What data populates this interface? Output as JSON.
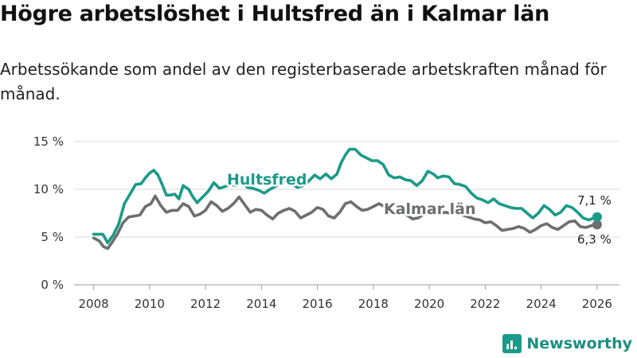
{
  "header": {
    "title": "Högre arbetslöshet i Hultsfred än i Kalmar län",
    "subtitle": "Arbetssökande som andel av den registerbaserade arbetskraften månad för månad."
  },
  "brand": {
    "name": "Newsworthy",
    "icon": "newsworthy-logo-icon"
  },
  "chart_data": {
    "type": "line",
    "title": "Högre arbetslöshet i Hultsfred än i Kalmar län",
    "xlabel": "",
    "ylabel": "",
    "xlim": [
      2007.3,
      2026.8
    ],
    "ylim": [
      0,
      15
    ],
    "grid": true,
    "x_ticks": [
      2008,
      2010,
      2012,
      2014,
      2016,
      2018,
      2020,
      2022,
      2024,
      2026
    ],
    "x_tick_labels": [
      "2008",
      "2010",
      "2012",
      "2014",
      "2016",
      "2018",
      "2020",
      "2022",
      "2024",
      "2026"
    ],
    "y_ticks": [
      0,
      5,
      10,
      15
    ],
    "y_tick_labels": [
      "0 %",
      "5 %",
      "10 %",
      "15 %"
    ],
    "series": [
      {
        "name": "Hultsfred",
        "color": "#1a9a89",
        "end_label": "7,1 %",
        "points": [
          [
            2008.0,
            5.3
          ],
          [
            2008.33,
            5.3
          ],
          [
            2008.5,
            4.4
          ],
          [
            2008.7,
            5.2
          ],
          [
            2008.9,
            6.4
          ],
          [
            2009.1,
            8.5
          ],
          [
            2009.3,
            9.5
          ],
          [
            2009.5,
            10.5
          ],
          [
            2009.7,
            10.6
          ],
          [
            2009.85,
            11.2
          ],
          [
            2010.0,
            11.7
          ],
          [
            2010.15,
            12.0
          ],
          [
            2010.3,
            11.5
          ],
          [
            2010.45,
            10.5
          ],
          [
            2010.6,
            9.4
          ],
          [
            2010.75,
            9.4
          ],
          [
            2010.9,
            9.5
          ],
          [
            2011.05,
            9.0
          ],
          [
            2011.2,
            10.4
          ],
          [
            2011.4,
            10.0
          ],
          [
            2011.55,
            9.2
          ],
          [
            2011.7,
            8.6
          ],
          [
            2011.9,
            9.2
          ],
          [
            2012.1,
            9.8
          ],
          [
            2012.3,
            10.7
          ],
          [
            2012.5,
            10.1
          ],
          [
            2012.7,
            10.3
          ],
          [
            2012.9,
            10.5
          ],
          [
            2013.1,
            10.4
          ],
          [
            2013.3,
            10.8
          ],
          [
            2013.5,
            10.2
          ],
          [
            2013.7,
            10.1
          ],
          [
            2013.9,
            9.9
          ],
          [
            2014.1,
            9.6
          ],
          [
            2014.3,
            10.0
          ],
          [
            2014.5,
            10.3
          ],
          [
            2014.7,
            10.7
          ],
          [
            2014.9,
            11.0
          ],
          [
            2015.1,
            10.5
          ],
          [
            2015.3,
            10.2
          ],
          [
            2015.5,
            10.4
          ],
          [
            2015.7,
            10.9
          ],
          [
            2015.9,
            11.5
          ],
          [
            2016.1,
            11.1
          ],
          [
            2016.3,
            11.6
          ],
          [
            2016.5,
            11.1
          ],
          [
            2016.7,
            11.6
          ],
          [
            2016.85,
            12.8
          ],
          [
            2017.0,
            13.6
          ],
          [
            2017.15,
            14.2
          ],
          [
            2017.35,
            14.2
          ],
          [
            2017.55,
            13.6
          ],
          [
            2017.75,
            13.3
          ],
          [
            2017.95,
            13.0
          ],
          [
            2018.15,
            13.0
          ],
          [
            2018.35,
            12.6
          ],
          [
            2018.55,
            11.5
          ],
          [
            2018.75,
            11.2
          ],
          [
            2018.95,
            11.3
          ],
          [
            2019.15,
            11.0
          ],
          [
            2019.35,
            10.9
          ],
          [
            2019.55,
            10.4
          ],
          [
            2019.75,
            10.9
          ],
          [
            2019.95,
            11.9
          ],
          [
            2020.15,
            11.6
          ],
          [
            2020.3,
            11.2
          ],
          [
            2020.5,
            11.4
          ],
          [
            2020.7,
            11.3
          ],
          [
            2020.9,
            10.6
          ],
          [
            2021.1,
            10.5
          ],
          [
            2021.3,
            10.3
          ],
          [
            2021.5,
            9.6
          ],
          [
            2021.7,
            9.1
          ],
          [
            2021.9,
            8.9
          ],
          [
            2022.1,
            8.6
          ],
          [
            2022.3,
            9.0
          ],
          [
            2022.5,
            8.5
          ],
          [
            2022.7,
            8.3
          ],
          [
            2022.9,
            8.1
          ],
          [
            2023.1,
            8.0
          ],
          [
            2023.3,
            8.0
          ],
          [
            2023.5,
            7.5
          ],
          [
            2023.7,
            7.0
          ],
          [
            2023.9,
            7.5
          ],
          [
            2024.1,
            8.3
          ],
          [
            2024.3,
            7.9
          ],
          [
            2024.5,
            7.3
          ],
          [
            2024.7,
            7.6
          ],
          [
            2024.9,
            8.3
          ],
          [
            2025.1,
            8.1
          ],
          [
            2025.3,
            7.6
          ],
          [
            2025.5,
            7.0
          ],
          [
            2025.7,
            6.8
          ],
          [
            2025.9,
            7.0
          ],
          [
            2026.0,
            7.1
          ]
        ]
      },
      {
        "name": "Kalmar län",
        "color": "#6d6e70",
        "end_label": "6,3 %",
        "points": [
          [
            2008.0,
            4.9
          ],
          [
            2008.2,
            4.6
          ],
          [
            2008.35,
            4.0
          ],
          [
            2008.5,
            3.8
          ],
          [
            2008.65,
            4.4
          ],
          [
            2008.85,
            5.3
          ],
          [
            2009.05,
            6.5
          ],
          [
            2009.25,
            7.1
          ],
          [
            2009.45,
            7.2
          ],
          [
            2009.65,
            7.3
          ],
          [
            2009.85,
            8.2
          ],
          [
            2010.05,
            8.5
          ],
          [
            2010.2,
            9.3
          ],
          [
            2010.4,
            8.3
          ],
          [
            2010.6,
            7.6
          ],
          [
            2010.8,
            7.8
          ],
          [
            2011.0,
            7.8
          ],
          [
            2011.2,
            8.5
          ],
          [
            2011.4,
            8.2
          ],
          [
            2011.6,
            7.2
          ],
          [
            2011.8,
            7.4
          ],
          [
            2012.0,
            7.8
          ],
          [
            2012.2,
            8.7
          ],
          [
            2012.4,
            8.3
          ],
          [
            2012.6,
            7.7
          ],
          [
            2012.8,
            8.0
          ],
          [
            2013.0,
            8.5
          ],
          [
            2013.2,
            9.2
          ],
          [
            2013.4,
            8.4
          ],
          [
            2013.6,
            7.6
          ],
          [
            2013.8,
            7.9
          ],
          [
            2014.0,
            7.8
          ],
          [
            2014.2,
            7.3
          ],
          [
            2014.4,
            6.9
          ],
          [
            2014.6,
            7.5
          ],
          [
            2014.8,
            7.8
          ],
          [
            2015.0,
            8.0
          ],
          [
            2015.2,
            7.7
          ],
          [
            2015.4,
            7.0
          ],
          [
            2015.6,
            7.3
          ],
          [
            2015.8,
            7.6
          ],
          [
            2016.0,
            8.1
          ],
          [
            2016.2,
            7.9
          ],
          [
            2016.4,
            7.2
          ],
          [
            2016.6,
            7.0
          ],
          [
            2016.8,
            7.6
          ],
          [
            2017.0,
            8.5
          ],
          [
            2017.2,
            8.7
          ],
          [
            2017.4,
            8.2
          ],
          [
            2017.6,
            7.8
          ],
          [
            2017.8,
            7.9
          ],
          [
            2018.0,
            8.2
          ],
          [
            2018.2,
            8.5
          ],
          [
            2018.4,
            8.2
          ],
          [
            2018.6,
            7.6
          ],
          [
            2018.8,
            7.5
          ],
          [
            2019.0,
            7.6
          ],
          [
            2019.2,
            7.3
          ],
          [
            2019.4,
            6.9
          ],
          [
            2019.6,
            7.0
          ],
          [
            2019.8,
            7.4
          ],
          [
            2020.0,
            7.6
          ],
          [
            2020.2,
            7.8
          ],
          [
            2020.4,
            7.5
          ],
          [
            2020.6,
            7.6
          ],
          [
            2020.8,
            7.4
          ],
          [
            2021.0,
            7.6
          ],
          [
            2021.2,
            7.3
          ],
          [
            2021.4,
            7.1
          ],
          [
            2021.6,
            6.9
          ],
          [
            2021.8,
            6.8
          ],
          [
            2022.0,
            6.5
          ],
          [
            2022.2,
            6.6
          ],
          [
            2022.4,
            6.2
          ],
          [
            2022.6,
            5.7
          ],
          [
            2022.8,
            5.8
          ],
          [
            2023.0,
            5.9
          ],
          [
            2023.2,
            6.1
          ],
          [
            2023.4,
            5.9
          ],
          [
            2023.6,
            5.5
          ],
          [
            2023.8,
            5.8
          ],
          [
            2024.0,
            6.2
          ],
          [
            2024.2,
            6.4
          ],
          [
            2024.4,
            6.0
          ],
          [
            2024.6,
            5.8
          ],
          [
            2024.8,
            6.2
          ],
          [
            2025.0,
            6.6
          ],
          [
            2025.2,
            6.7
          ],
          [
            2025.4,
            6.1
          ],
          [
            2025.6,
            6.0
          ],
          [
            2025.8,
            6.2
          ],
          [
            2026.0,
            6.3
          ]
        ]
      }
    ]
  }
}
